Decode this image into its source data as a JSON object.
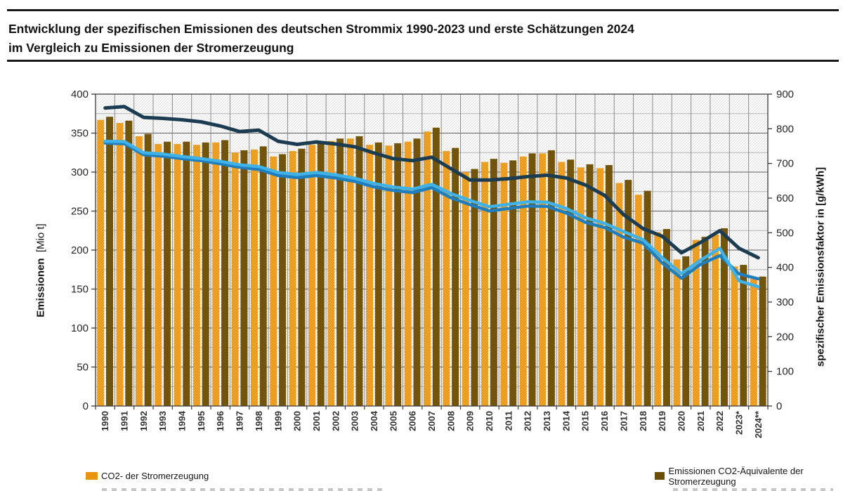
{
  "title": {
    "line1": "Entwicklung der spezifischen Emissionen des deutschen Strommix 1990-2023 und erste Schätzungen 2024",
    "line2": "im Vergleich zu Emissionen der Stromerzeugung"
  },
  "axes": {
    "left": {
      "title_bold": "Emissionen",
      "title_unit": "[Mio t]"
    },
    "right": {
      "title": "spezifischer Emissionsfaktor  in [g/kWh]"
    }
  },
  "legend": {
    "position": "bottom",
    "items": [
      {
        "label": "CO2- der Stromerzeugung",
        "color": "#E8940C"
      },
      {
        "label": "Emissionen CO2-Äquivalente der Stromerzeugung",
        "color": "#6B4E03"
      }
    ]
  },
  "colors": {
    "bar_orange": "#E8940C",
    "bar_orange_hatch": "#F4B04A",
    "bar_brown": "#6B4E03",
    "bar_brown_hatch": "#7E5F14",
    "line_navy": "#1C3C52",
    "line_lightblue": "#3FB3E8",
    "line_blue": "#1F7EBE",
    "grid_major": "#5f5f5f",
    "grid_minor": "#b4b4b4",
    "grid_vertical": "#8a8a8a",
    "hatch_bg": "#dcdcdc",
    "axis": "#3a3a3a",
    "tick_text": "#262626"
  },
  "chart_data": {
    "type": "bar+line",
    "categories": [
      "1990",
      "1991",
      "1992",
      "1993",
      "1994",
      "1995",
      "1996",
      "1997",
      "1998",
      "1999",
      "2000",
      "2001",
      "2002",
      "2003",
      "2004",
      "2005",
      "2006",
      "2007",
      "2008",
      "2009",
      "2010",
      "2011",
      "2012",
      "2013",
      "2014",
      "2015",
      "2016",
      "2017",
      "2018",
      "2019",
      "2020",
      "2021",
      "2022",
      "2023*",
      "2024**"
    ],
    "bar_series": [
      {
        "name": "CO2- der Stromerzeugung",
        "axis": "left",
        "unit": "Mio t",
        "color": "#E8940C",
        "values": [
          367,
          363,
          346,
          336,
          336,
          335,
          338,
          325,
          329,
          320,
          327,
          335,
          340,
          343,
          335,
          334,
          339,
          352,
          327,
          300,
          313,
          312,
          320,
          324,
          313,
          306,
          305,
          286,
          271,
          223,
          188,
          213,
          220,
          179,
          163
        ]
      },
      {
        "name": "Emissionen CO2-Äquivalente der Stromerzeugung",
        "axis": "left",
        "unit": "Mio t",
        "color": "#6B4E03",
        "values": [
          371,
          366,
          349,
          339,
          339,
          338,
          341,
          328,
          333,
          323,
          330,
          338,
          343,
          346,
          338,
          337,
          343,
          357,
          331,
          304,
          317,
          315,
          324,
          328,
          316,
          310,
          309,
          290,
          276,
          227,
          192,
          217,
          228,
          181,
          166
        ]
      }
    ],
    "line_series": [
      {
        "name": "linie-dunkelblau",
        "axis": "right",
        "unit": "g/kWh",
        "color": "#1C3C52",
        "width": 5,
        "values": [
          860,
          864,
          833,
          830,
          826,
          820,
          808,
          792,
          796,
          764,
          755,
          762,
          756,
          748,
          730,
          714,
          708,
          718,
          685,
          652,
          652,
          656,
          662,
          666,
          658,
          638,
          608,
          552,
          512,
          490,
          442,
          472,
          506,
          455,
          428
        ]
      },
      {
        "name": "linie-blau",
        "axis": "right",
        "unit": "g/kWh",
        "color": "#1F7EBE",
        "width": 4.5,
        "values": [
          759,
          757,
          725,
          721,
          714,
          708,
          699,
          689,
          683,
          665,
          659,
          665,
          658,
          648,
          632,
          622,
          616,
          630,
          601,
          581,
          563,
          570,
          577,
          576,
          557,
          530,
          515,
          487,
          470,
          413,
          369,
          409,
          434,
          381,
          367
        ]
      },
      {
        "name": "linie-hellblau",
        "axis": "right",
        "unit": "g/kWh",
        "color": "#3FB3E8",
        "width": 4.5,
        "values": [
          764,
          763,
          731,
          727,
          720,
          714,
          706,
          696,
          691,
          674,
          668,
          674,
          667,
          657,
          642,
          632,
          626,
          640,
          613,
          593,
          575,
          582,
          589,
          588,
          570,
          543,
          527,
          503,
          480,
          428,
          382,
          421,
          455,
          361,
          344
        ]
      }
    ],
    "axis_left": {
      "label": "Emissionen [Mio t]",
      "range": [
        0,
        400
      ],
      "major_step": 50,
      "minor_step": 25
    },
    "axis_right": {
      "label": "spezifischer Emissionsfaktor in [g/kWh]",
      "range": [
        0,
        900
      ],
      "major_step": 100
    },
    "grid": {
      "horizontal": true,
      "vertical": true,
      "hatched_background": true
    },
    "legend_position": "bottom"
  }
}
